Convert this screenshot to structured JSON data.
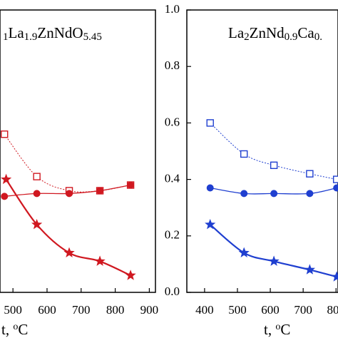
{
  "chart_data": [
    {
      "type": "line",
      "title_parts": [
        {
          "text": "1",
          "sub": true
        },
        {
          "text": "La"
        },
        {
          "text": "1.9",
          "sub": true
        },
        {
          "text": "ZnNdO"
        },
        {
          "text": "5.45",
          "sub": true
        }
      ],
      "xlabel_parts": [
        {
          "text": "t, "
        },
        {
          "text": "o",
          "sup": true
        },
        {
          "text": "C"
        }
      ],
      "xlim": [
        462,
        918
      ],
      "ylim": [
        0,
        1
      ],
      "xticks": [
        500,
        600,
        700,
        800,
        900
      ],
      "series": [
        {
          "marker": "square",
          "color": "#d01820",
          "x": [
            475,
            570,
            665,
            755,
            845
          ],
          "values": [
            0.56,
            0.41,
            0.36,
            0.36,
            0.38
          ]
        },
        {
          "marker": "circle",
          "color": "#d01820",
          "x": [
            475,
            570,
            665,
            755,
            845
          ],
          "values": [
            0.34,
            0.35,
            0.35,
            0.36,
            0.38
          ]
        },
        {
          "marker": "star",
          "color": "#d01820",
          "x": [
            480,
            570,
            665,
            755,
            845
          ],
          "values": [
            0.4,
            0.24,
            0.14,
            0.11,
            0.06
          ]
        }
      ]
    },
    {
      "type": "line",
      "title_parts": [
        {
          "text": "La"
        },
        {
          "text": "2",
          "sub": true
        },
        {
          "text": "ZnNd"
        },
        {
          "text": "0.9",
          "sub": true
        },
        {
          "text": "Ca"
        },
        {
          "text": "0.",
          "sub": true
        }
      ],
      "xlabel_parts": [
        {
          "text": "t, "
        },
        {
          "text": "o",
          "sup": true
        },
        {
          "text": "C"
        }
      ],
      "xlim": [
        346,
        806
      ],
      "ylim": [
        0,
        1
      ],
      "xticks": [
        400,
        500,
        600,
        700,
        800
      ],
      "yticks": [
        {
          "value": 0,
          "label": "0.0"
        },
        0.2,
        0.4,
        0.6,
        0.8,
        {
          "value": 1,
          "label": "1.0"
        }
      ],
      "series": [
        {
          "marker": "square",
          "color": "#1f3fd0",
          "x": [
            417,
            520,
            611,
            720,
            802
          ],
          "values": [
            0.6,
            0.49,
            0.45,
            0.42,
            0.4
          ]
        },
        {
          "marker": "circle",
          "color": "#1f3fd0",
          "x": [
            417,
            520,
            611,
            720,
            802
          ],
          "values": [
            0.37,
            0.35,
            0.35,
            0.35,
            0.37
          ]
        },
        {
          "marker": "star",
          "color": "#1f3fd0",
          "x": [
            417,
            520,
            611,
            720,
            802
          ],
          "values": [
            0.24,
            0.14,
            0.11,
            0.08,
            0.055
          ]
        }
      ]
    }
  ]
}
